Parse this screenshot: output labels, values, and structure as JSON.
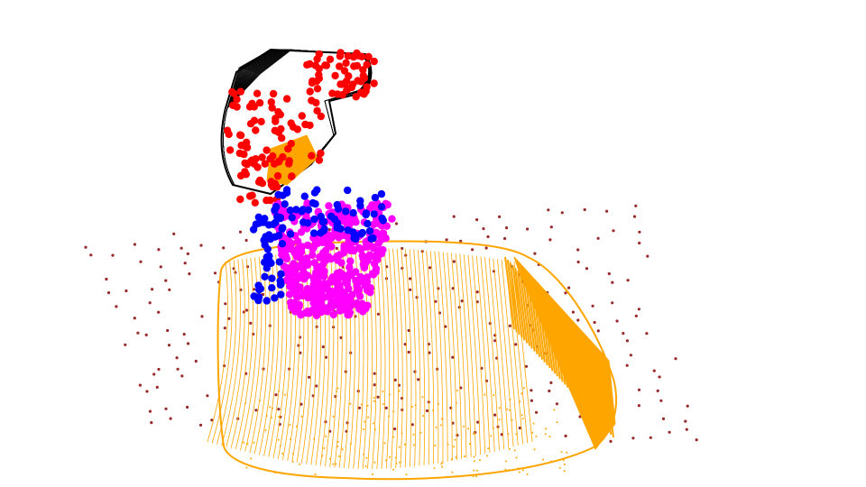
{
  "scene": {
    "description_visible_text": "",
    "background": "#ffffff",
    "layers": [
      {
        "name": "floor-points",
        "color": "#9a2a2a"
      },
      {
        "name": "bowl-points",
        "color": "#ffa500"
      },
      {
        "name": "gripper-mesh",
        "color": "#000000"
      },
      {
        "name": "gripper-contact-points",
        "color": "#ff0000"
      },
      {
        "name": "gripper-inner",
        "color": "#ffa500"
      },
      {
        "name": "cup-points",
        "color": "#ff00ff"
      },
      {
        "name": "cup-contact-points",
        "color": "#0000ff"
      }
    ]
  }
}
